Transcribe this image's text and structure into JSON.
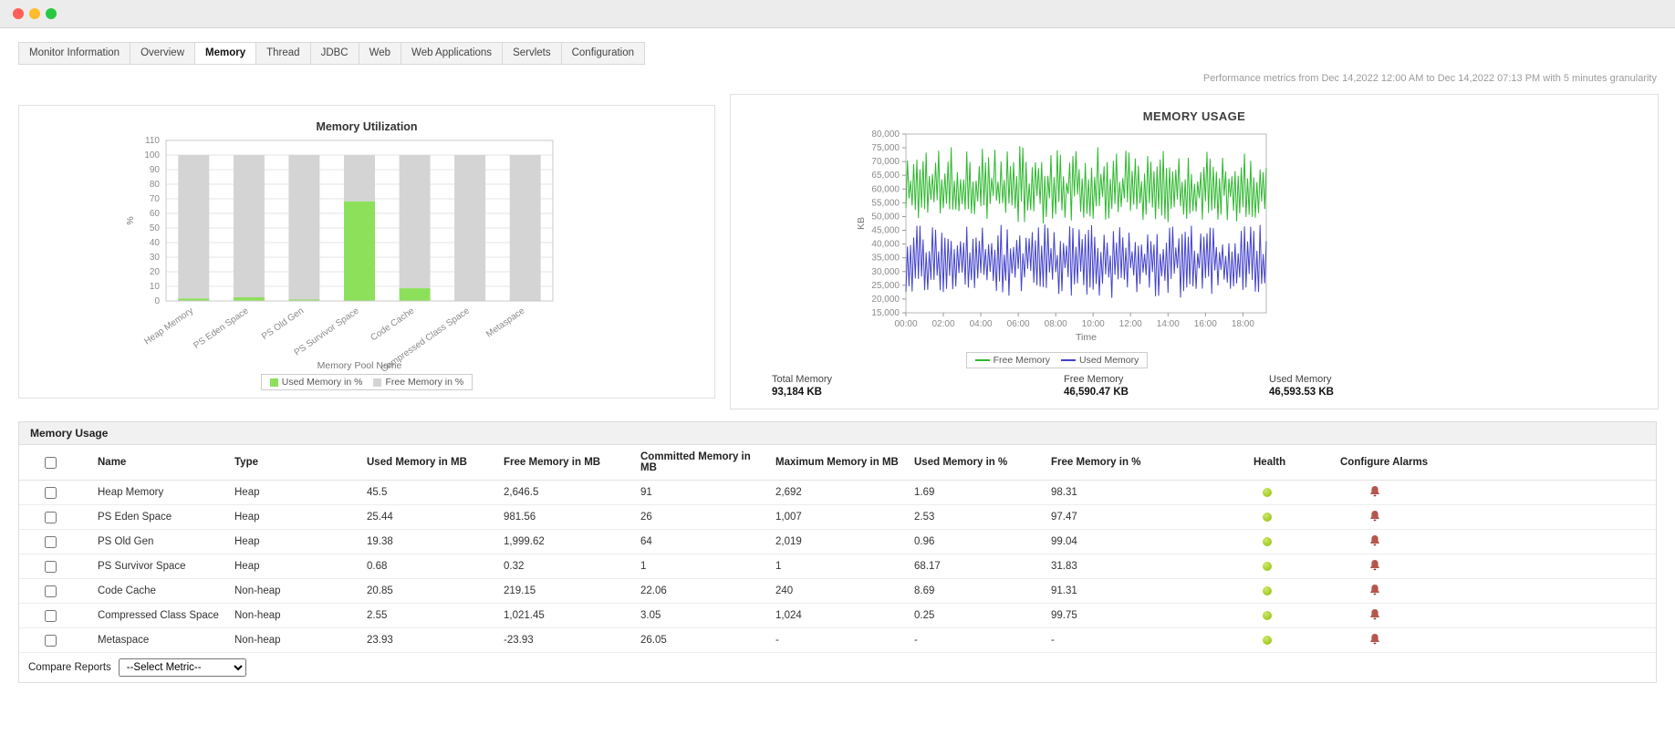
{
  "metrics_note": "Performance metrics from Dec 14,2022 12:00 AM to Dec 14,2022 07:13 PM with 5 minutes granularity",
  "tabs": [
    {
      "label": "Monitor Information",
      "active": false
    },
    {
      "label": "Overview",
      "active": false
    },
    {
      "label": "Memory",
      "active": true
    },
    {
      "label": "Thread",
      "active": false
    },
    {
      "label": "JDBC",
      "active": false
    },
    {
      "label": "Web",
      "active": false
    },
    {
      "label": "Web Applications",
      "active": false
    },
    {
      "label": "Servlets",
      "active": false
    },
    {
      "label": "Configuration",
      "active": false
    }
  ],
  "chart_data": [
    {
      "id": "memory-utilization",
      "type": "bar",
      "stacked": true,
      "title": "Memory Utilization",
      "xlabel": "Memory Pool Name",
      "ylabel": "%",
      "ylim": [
        0,
        110
      ],
      "ytick_step": 10,
      "grid": true,
      "legend_position": "bottom",
      "categories": [
        "Heap Memory",
        "PS Eden Space",
        "PS Old Gen",
        "PS Survivor Space",
        "Code Cache",
        "Compressed Class Space",
        "Metaspace"
      ],
      "series": [
        {
          "name": "Used Memory in %",
          "color": "#8de05a",
          "values": [
            1.69,
            2.53,
            0.96,
            68.17,
            8.69,
            0.25,
            0
          ]
        },
        {
          "name": "Free Memory in %",
          "color": "#d4d4d4",
          "values": [
            98.31,
            97.47,
            99.04,
            31.83,
            91.31,
            99.75,
            100
          ]
        }
      ]
    },
    {
      "id": "memory-usage",
      "type": "line",
      "title": "MEMORY USAGE",
      "xlabel": "Time",
      "ylabel": "KB",
      "ylim": [
        15000,
        80000
      ],
      "ytick_step": 5000,
      "grid": false,
      "legend_position": "bottom",
      "xticks": [
        "00:00",
        "02:00",
        "04:00",
        "06:00",
        "08:00",
        "10:00",
        "12:00",
        "14:00",
        "16:00",
        "18:00"
      ],
      "x_hours": [
        0,
        19.25
      ],
      "points_per_series": 232,
      "series": [
        {
          "name": "Free Memory",
          "color": "#2db82d",
          "seed": 11,
          "low": [
            48000,
            58000
          ],
          "high": [
            62000,
            75500
          ]
        },
        {
          "name": "Used Memory",
          "color": "#4242cc",
          "seed": 29,
          "low": [
            21000,
            31000
          ],
          "high": [
            36000,
            47000
          ]
        }
      ]
    }
  ],
  "usage_summary": [
    {
      "label": "Total Memory",
      "value": "93,184 KB"
    },
    {
      "label": "Free Memory",
      "value": "46,590.47 KB"
    },
    {
      "label": "Used Memory",
      "value": "46,593.53 KB"
    }
  ],
  "table": {
    "section_title": "Memory Usage",
    "columns": [
      "Name",
      "Type",
      "Used Memory in MB",
      "Free Memory in MB",
      "Committed Memory in MB",
      "Maximum Memory in MB",
      "Used Memory in %",
      "Free Memory in %",
      "Health",
      "Configure Alarms"
    ],
    "rows": [
      {
        "name": "Heap Memory",
        "type": "Heap",
        "used_mb": "45.5",
        "free_mb": "2,646.5",
        "committed_mb": "91",
        "max_mb": "2,692",
        "used_pct": "1.69",
        "free_pct": "98.31",
        "health": "good"
      },
      {
        "name": "PS Eden Space",
        "type": "Heap",
        "used_mb": "25.44",
        "free_mb": "981.56",
        "committed_mb": "26",
        "max_mb": "1,007",
        "used_pct": "2.53",
        "free_pct": "97.47",
        "health": "good"
      },
      {
        "name": "PS Old Gen",
        "type": "Heap",
        "used_mb": "19.38",
        "free_mb": "1,999.62",
        "committed_mb": "64",
        "max_mb": "2,019",
        "used_pct": "0.96",
        "free_pct": "99.04",
        "health": "good"
      },
      {
        "name": "PS Survivor Space",
        "type": "Heap",
        "used_mb": "0.68",
        "free_mb": "0.32",
        "committed_mb": "1",
        "max_mb": "1",
        "used_pct": "68.17",
        "free_pct": "31.83",
        "health": "good"
      },
      {
        "name": "Code Cache",
        "type": "Non-heap",
        "used_mb": "20.85",
        "free_mb": "219.15",
        "committed_mb": "22.06",
        "max_mb": "240",
        "used_pct": "8.69",
        "free_pct": "91.31",
        "health": "good"
      },
      {
        "name": "Compressed Class Space",
        "type": "Non-heap",
        "used_mb": "2.55",
        "free_mb": "1,021.45",
        "committed_mb": "3.05",
        "max_mb": "1,024",
        "used_pct": "0.25",
        "free_pct": "99.75",
        "health": "good"
      },
      {
        "name": "Metaspace",
        "type": "Non-heap",
        "used_mb": "23.93",
        "free_mb": "-23.93",
        "committed_mb": "26.05",
        "max_mb": "-",
        "used_pct": "-",
        "free_pct": "-",
        "health": "good"
      }
    ],
    "compare_label": "Compare Reports",
    "select_value": "--Select Metric--"
  },
  "colors": {
    "health_good": "#8fbc00",
    "bar_used": "#8de05a",
    "bar_free": "#d4d4d4",
    "line_free": "#2db82d",
    "line_used": "#4242cc",
    "alarm_icon": "#b5564e"
  }
}
